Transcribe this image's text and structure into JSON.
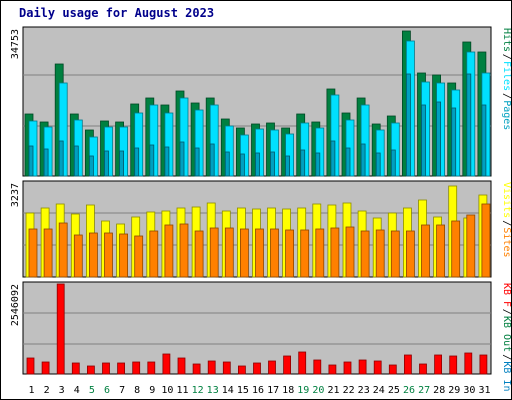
{
  "chart_data": {
    "type": "bar",
    "title": "Daily usage for August 2023",
    "categories": [
      "1",
      "2",
      "3",
      "4",
      "5",
      "6",
      "7",
      "8",
      "9",
      "10",
      "11",
      "12",
      "13",
      "14",
      "15",
      "16",
      "17",
      "18",
      "19",
      "20",
      "21",
      "22",
      "23",
      "24",
      "25",
      "26",
      "27",
      "28",
      "29",
      "30",
      "31"
    ],
    "weekend_days": [
      "5",
      "6",
      "12",
      "13",
      "19",
      "20",
      "26",
      "27"
    ],
    "colors": {
      "background": "#ffffff",
      "plot": "#c0c0c0",
      "frame": "#000000",
      "title": "#00008b",
      "hits": "#008040",
      "files": "#00e0ff",
      "pages": "#00a0c0",
      "visits": "#ffff00",
      "sites": "#ff8000",
      "kbin": "#0080c0",
      "kbout": "#008040",
      "kbf": "#ff0000",
      "weekday_label": "#000000",
      "weekend_label": "#008040"
    },
    "panels": [
      {
        "id": "hits_files_pages",
        "ymax_label": "34753",
        "ymax": 34753,
        "legend": [
          {
            "text": "Hits",
            "color": "#008040"
          },
          {
            "text": "/",
            "color": "#000000"
          },
          {
            "text": "Files",
            "color": "#00e0ff"
          },
          {
            "text": "/",
            "color": "#000000"
          },
          {
            "text": "Pages",
            "color": "#00a0c0"
          }
        ],
        "series": [
          {
            "key": "hits",
            "values": [
              14600,
              12700,
              26500,
              14600,
              10800,
              13000,
              12800,
              17000,
              18400,
              16700,
              20000,
              17200,
              18400,
              13500,
              11400,
              12300,
              12500,
              11300,
              14600,
              12800,
              20500,
              15000,
              18400,
              12200,
              14200,
              34200,
              24400,
              23800,
              22000,
              31700,
              29300
            ]
          },
          {
            "key": "files",
            "values": [
              13000,
              11500,
              21900,
              13200,
              9200,
              11700,
              11500,
              14800,
              16700,
              15000,
              18400,
              15500,
              16900,
              11900,
              9800,
              11000,
              10800,
              10000,
              12600,
              11300,
              19100,
              13200,
              16900,
              10800,
              12500,
              32000,
              22200,
              22100,
              20300,
              29300,
              24300
            ]
          },
          {
            "key": "pages",
            "values": [
              7000,
              6500,
              8200,
              7000,
              4800,
              5800,
              5900,
              6700,
              7400,
              6800,
              8100,
              6600,
              7600,
              5700,
              5200,
              5500,
              5600,
              4800,
              6200,
              5500,
              8200,
              6700,
              7500,
              5400,
              6100,
              24200,
              16800,
              17500,
              16000,
              24000,
              16700
            ]
          }
        ]
      },
      {
        "id": "visits_sites",
        "ymax_label": "3237",
        "ymax": 3237,
        "legend": [
          {
            "text": "Visits",
            "color": "#ffff00"
          },
          {
            "text": "/",
            "color": "#000000"
          },
          {
            "text": "Sites",
            "color": "#ff8000"
          }
        ],
        "series": [
          {
            "key": "visits",
            "values": [
              2210,
              2370,
              2500,
              2160,
              2480,
              1920,
              1830,
              2060,
              2230,
              2290,
              2380,
              2420,
              2540,
              2290,
              2370,
              2350,
              2380,
              2330,
              2360,
              2520,
              2470,
              2540,
              2260,
              2040,
              2210,
              2380,
              2650,
              2070,
              3150,
              2030,
              2810
            ]
          },
          {
            "key": "sites",
            "values": [
              1650,
              1670,
              1860,
              1440,
              1520,
              1520,
              1480,
              1410,
              1580,
              1790,
              1830,
              1600,
              1700,
              1700,
              1660,
              1640,
              1650,
              1630,
              1630,
              1660,
              1700,
              1710,
              1590,
              1630,
              1570,
              1590,
              1790,
              1800,
              1940,
              2140,
              2510
            ]
          }
        ]
      },
      {
        "id": "kbytes",
        "ymax_label": "2546092",
        "ymax": 2546092,
        "legend": [
          {
            "text": "KB F",
            "color": "#ff0000"
          },
          {
            "text": "/",
            "color": "#000000"
          },
          {
            "text": "KB Out",
            "color": "#008040"
          },
          {
            "text": "/",
            "color": "#000000"
          },
          {
            "text": "KB In",
            "color": "#0080c0"
          }
        ],
        "series": [
          {
            "key": "kbf",
            "values": [
              440000,
              340000,
              2546092,
              300000,
              240000,
              320000,
              310000,
              340000,
              340000,
              560000,
              450000,
              290000,
              380000,
              340000,
              240000,
              320000,
              380000,
              500000,
              620000,
              400000,
              260000,
              330000,
              410000,
              380000,
              260000,
              550000,
              280000,
              550000,
              520000,
              600000,
              550000
            ]
          }
        ]
      }
    ]
  }
}
